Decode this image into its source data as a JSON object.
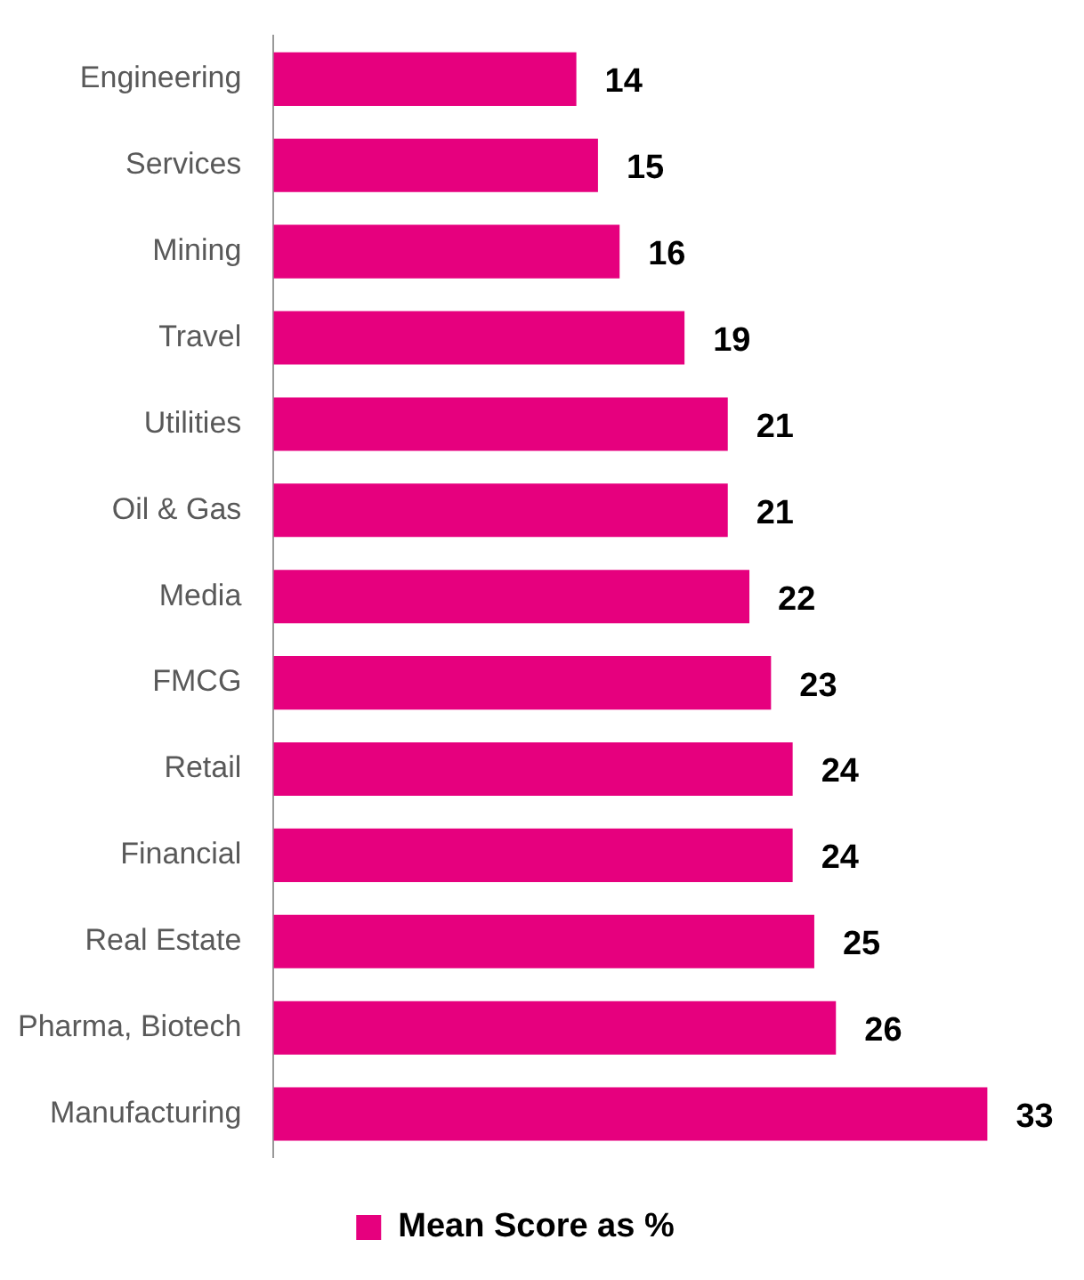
{
  "chart_data": {
    "type": "bar",
    "orientation": "horizontal",
    "categories": [
      "Engineering",
      "Services",
      "Mining",
      "Travel",
      "Utilities",
      "Oil & Gas",
      "Media",
      "FMCG",
      "Retail",
      "Financial",
      "Real Estate",
      "Pharma, Biotech",
      "Manufacturing"
    ],
    "series": [
      {
        "name": "Mean Score as %",
        "color": "#e6007e",
        "values": [
          14,
          15,
          16,
          19,
          21,
          21,
          22,
          23,
          24,
          24,
          25,
          26,
          33
        ]
      }
    ],
    "data_labels": true,
    "legend": "bottom"
  }
}
